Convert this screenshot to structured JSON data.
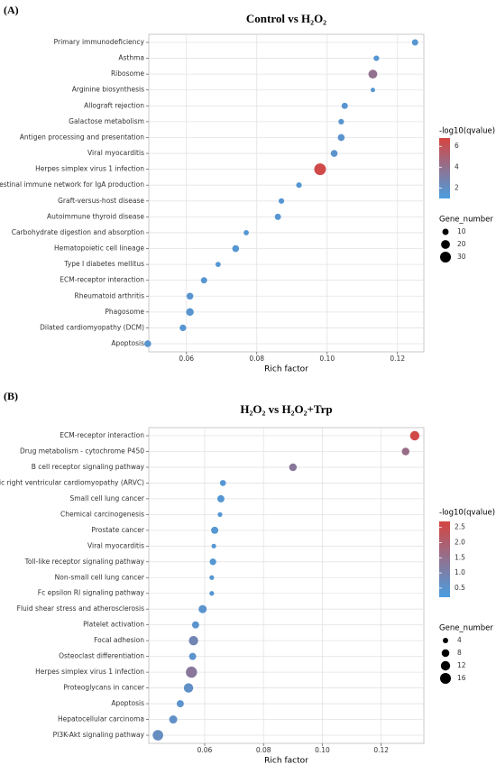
{
  "chart_data": [
    {
      "type": "scatter",
      "panel_label": "(A)",
      "title": "Control vs H₂O₂",
      "categories": [
        "Primary immunodeficiency",
        "Asthma",
        "Ribosome",
        "Arginine biosynthesis",
        "Allograft rejection",
        "Galactose metabolism",
        "Antigen processing and presentation",
        "Viral myocarditis",
        "Herpes simplex virus 1 infection",
        "Intestinal immune network for IgA production",
        "Graft-versus-host disease",
        "Autoimmune thyroid disease",
        "Carbohydrate digestion and absorption",
        "Hematopoietic cell lineage",
        "Type I diabetes mellitus",
        "ECM-receptor interaction",
        "Rheumatoid arthritis",
        "Phagosome",
        "Dilated cardiomyopathy (DCM)",
        "Apoptosis"
      ],
      "x": [
        0.125,
        0.114,
        0.113,
        0.113,
        0.105,
        0.104,
        0.104,
        0.102,
        0.098,
        0.092,
        0.087,
        0.086,
        0.077,
        0.074,
        0.069,
        0.065,
        0.061,
        0.061,
        0.059,
        0.049
      ],
      "color_values": [
        1.5,
        1.5,
        4.0,
        1.5,
        1.6,
        1.6,
        1.7,
        1.7,
        6.5,
        1.5,
        1.5,
        1.5,
        1.4,
        1.5,
        1.4,
        1.5,
        1.6,
        1.6,
        1.5,
        1.6
      ],
      "sizes": [
        10,
        8,
        20,
        5,
        10,
        8,
        12,
        12,
        35,
        8,
        8,
        10,
        7,
        12,
        7,
        10,
        12,
        15,
        11,
        12
      ],
      "xlabel": "Rich factor",
      "xlim": [
        0.0493,
        0.1275
      ],
      "xticks": [
        {
          "value": 0.06,
          "label": "0.06"
        },
        {
          "value": 0.08,
          "label": "0.08"
        },
        {
          "value": 0.1,
          "label": "0.10"
        },
        {
          "value": 0.12,
          "label": "0.12"
        }
      ],
      "color_title": "-log10(qvalue)",
      "colorlim": [
        1,
        6.8
      ],
      "color_ticks": [
        2,
        4,
        6
      ],
      "colors": [
        "#4a9ee0",
        "#d64541"
      ],
      "size_title": "Gene_number",
      "size_ticks": [
        10,
        20,
        30
      ],
      "grid": true
    },
    {
      "type": "scatter",
      "panel_label": "(B)",
      "title": "H₂O₂ vs H₂O₂+Trp",
      "categories": [
        "ECM-receptor interaction",
        "Drug metabolism - cytochrome P450",
        "B cell receptor signaling pathway",
        "Arrhythmogenic right ventricular cardiomyopathy (ARVC)",
        "Small cell lung cancer",
        "Chemical carcinogenesis",
        "Prostate cancer",
        "Viral myocarditis",
        "Toll-like receptor signaling pathway",
        "Non-small cell lung cancer",
        "Fc epsilon RI signaling pathway",
        "Fluid shear stress and atherosclerosis",
        "Platelet activation",
        "Focal adhesion",
        "Osteoclast differentiation",
        "Herpes simplex virus 1 infection",
        "Proteoglycans in cancer",
        "Apoptosis",
        "Hepatocellular carcinoma",
        "PI3K-Akt signaling pathway"
      ],
      "x": [
        0.1314,
        0.1283,
        0.09,
        0.0662,
        0.0655,
        0.0652,
        0.0634,
        0.0631,
        0.0628,
        0.0624,
        0.0624,
        0.0593,
        0.0569,
        0.0562,
        0.0559,
        0.0555,
        0.0545,
        0.0517,
        0.0493,
        0.0441
      ],
      "color_values": [
        2.6,
        1.6,
        1.3,
        0.4,
        0.4,
        0.4,
        0.4,
        0.4,
        0.4,
        0.4,
        0.4,
        0.5,
        0.5,
        0.9,
        0.5,
        1.3,
        0.6,
        0.5,
        0.6,
        0.7
      ],
      "sizes": [
        12,
        8,
        8,
        5,
        7,
        3,
        7,
        3,
        6,
        3,
        3,
        9,
        7,
        12,
        7,
        17,
        12,
        7,
        9,
        15
      ],
      "xlabel": "Rich factor",
      "xlim": [
        0.041,
        0.1345
      ],
      "xticks": [
        {
          "value": 0.06,
          "label": "0.06"
        },
        {
          "value": 0.08,
          "label": "0.08"
        },
        {
          "value": 0.1,
          "label": "0.10"
        },
        {
          "value": 0.12,
          "label": "0.12"
        }
      ],
      "color_title": "-log10(qvalue)",
      "colorlim": [
        0.2,
        2.7
      ],
      "color_ticks": [
        0.5,
        {
          "value": 1,
          "label": "1.0"
        },
        1.5,
        {
          "value": 2,
          "label": "2.0"
        },
        2.5
      ],
      "colors": [
        "#4a9ee0",
        "#d64541"
      ],
      "size_title": "Gene_number",
      "size_ticks": [
        4,
        8,
        12,
        16
      ],
      "grid": true
    }
  ]
}
